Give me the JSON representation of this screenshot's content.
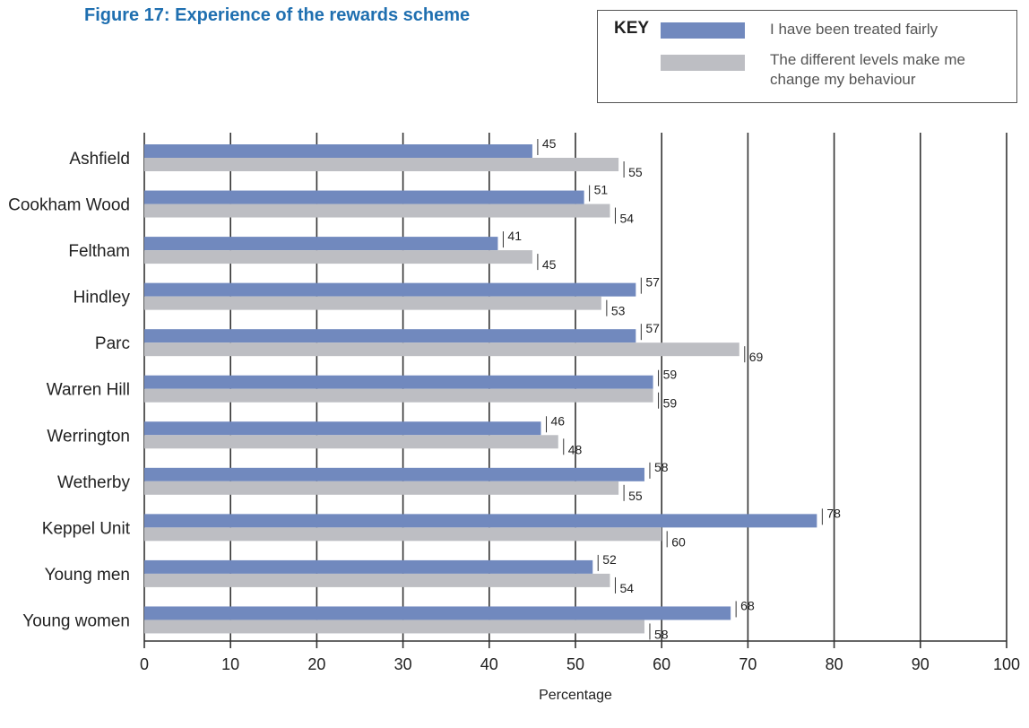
{
  "title": "Figure 17: Experience of the rewards scheme",
  "legend": {
    "key_label": "KEY",
    "items": [
      {
        "label": "I have been treated fairly",
        "color": "#7189be"
      },
      {
        "label": "The different levels make me change my behaviour",
        "color": "#bdbec3"
      }
    ]
  },
  "chart_data": {
    "type": "bar",
    "orientation": "horizontal",
    "title": "Figure 17: Experience of the rewards scheme",
    "xlabel": "Percentage",
    "ylabel": "",
    "xlim": [
      0,
      100
    ],
    "x_ticks": [
      0,
      10,
      20,
      30,
      40,
      50,
      60,
      70,
      80,
      90,
      100
    ],
    "grid": true,
    "legend_position": "top-right",
    "categories": [
      "Ashfield",
      "Cookham Wood",
      "Feltham",
      "Hindley",
      "Parc",
      "Warren Hill",
      "Werrington",
      "Wetherby",
      "Keppel Unit",
      "Young men",
      "Young women"
    ],
    "series": [
      {
        "name": "I have been treated fairly",
        "color": "#7189be",
        "values": [
          45,
          51,
          41,
          57,
          57,
          59,
          46,
          58,
          78,
          52,
          68
        ]
      },
      {
        "name": "The different levels make me change my behaviour",
        "color": "#bdbec3",
        "values": [
          55,
          54,
          45,
          53,
          69,
          59,
          48,
          55,
          60,
          54,
          58
        ]
      }
    ]
  }
}
